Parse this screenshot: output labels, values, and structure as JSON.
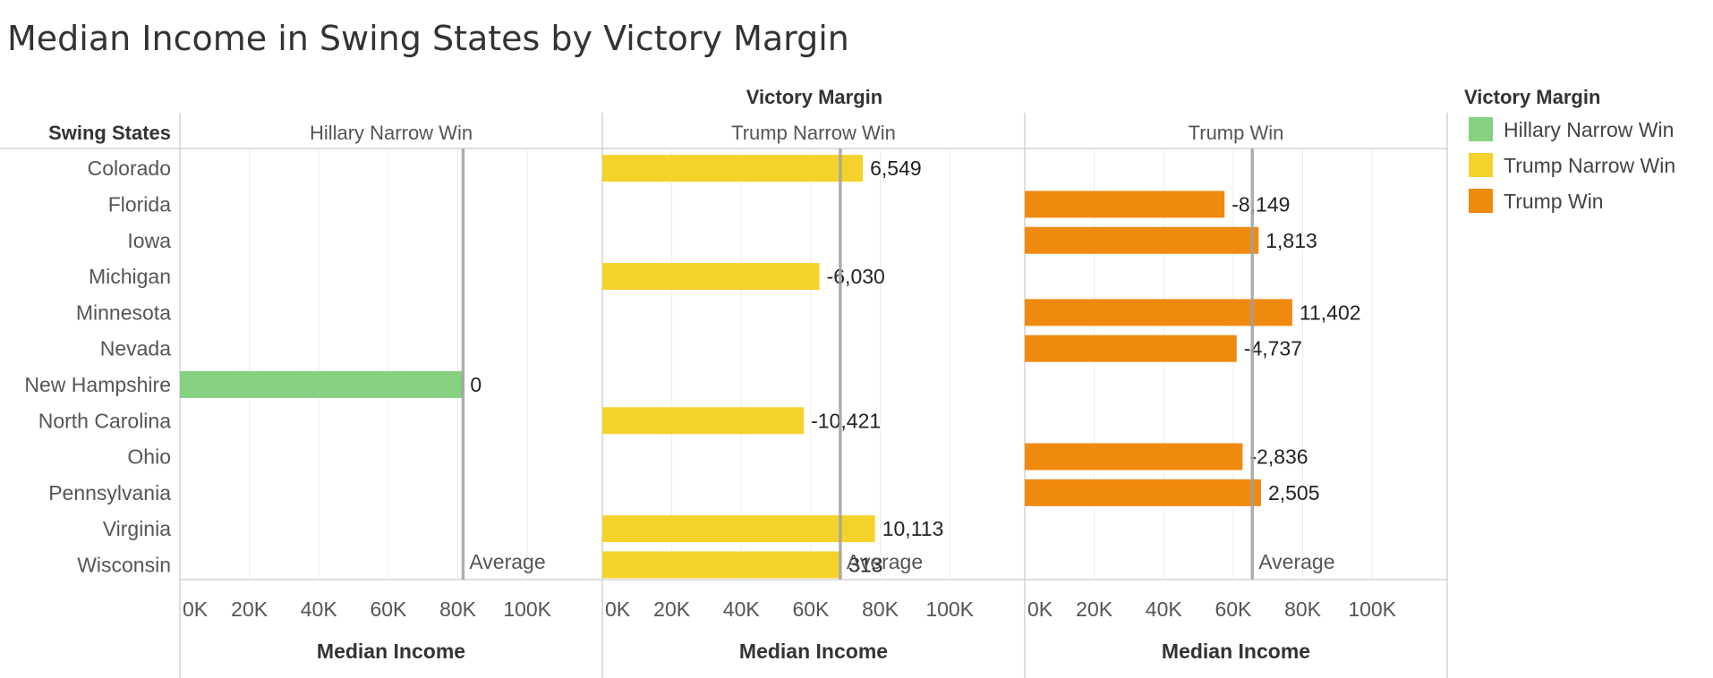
{
  "chart_data": {
    "type": "bar",
    "orientation": "horizontal",
    "title": "Median Income in Swing States by Victory Margin",
    "column_header": "Victory Margin",
    "row_header": "Swing States",
    "xlabel": "Median Income",
    "xlim": [
      0,
      110000
    ],
    "xticks": [
      0,
      20000,
      40000,
      60000,
      80000,
      100000
    ],
    "xtick_labels": [
      "0K",
      "20K",
      "40K",
      "60K",
      "80K",
      "100K"
    ],
    "grid": true,
    "categories": [
      "Colorado",
      "Florida",
      "Iowa",
      "Michigan",
      "Minnesota",
      "Nevada",
      "New Hampshire",
      "North Carolina",
      "Ohio",
      "Pennsylvania",
      "Virginia",
      "Wisconsin"
    ],
    "legend": {
      "title": "Victory Margin",
      "position": "right",
      "items": [
        {
          "label": "Hillary Narrow Win",
          "color": "#86d17f"
        },
        {
          "label": "Trump Narrow Win",
          "color": "#f5d22b"
        },
        {
          "label": "Trump Win",
          "color": "#f08a0f"
        }
      ]
    },
    "panels": [
      {
        "name": "Hillary Narrow Win",
        "color": "#86d17f",
        "average": 81500,
        "average_label": "Average",
        "bars": [
          {
            "state": "New Hampshire",
            "value": 81500,
            "label": "0"
          }
        ]
      },
      {
        "name": "Trump Narrow Win",
        "color": "#f5d22b",
        "average": 68500,
        "average_label": "Average",
        "bars": [
          {
            "state": "Colorado",
            "value": 75000,
            "label": "6,549"
          },
          {
            "state": "Michigan",
            "value": 62500,
            "label": "-6,030"
          },
          {
            "state": "North Carolina",
            "value": 58000,
            "label": "-10,421"
          },
          {
            "state": "Virginia",
            "value": 78500,
            "label": "10,113"
          },
          {
            "state": "Wisconsin",
            "value": 68800,
            "label": "313"
          }
        ]
      },
      {
        "name": "Trump Win",
        "color": "#f08a0f",
        "average": 65500,
        "average_label": "Average",
        "bars": [
          {
            "state": "Florida",
            "value": 57500,
            "label": "-8,149"
          },
          {
            "state": "Iowa",
            "value": 67300,
            "label": "1,813"
          },
          {
            "state": "Minnesota",
            "value": 77000,
            "label": "11,402"
          },
          {
            "state": "Nevada",
            "value": 61000,
            "label": "-4,737"
          },
          {
            "state": "Ohio",
            "value": 62700,
            "label": "-2,836"
          },
          {
            "state": "Pennsylvania",
            "value": 68000,
            "label": "2,505"
          }
        ]
      }
    ]
  }
}
